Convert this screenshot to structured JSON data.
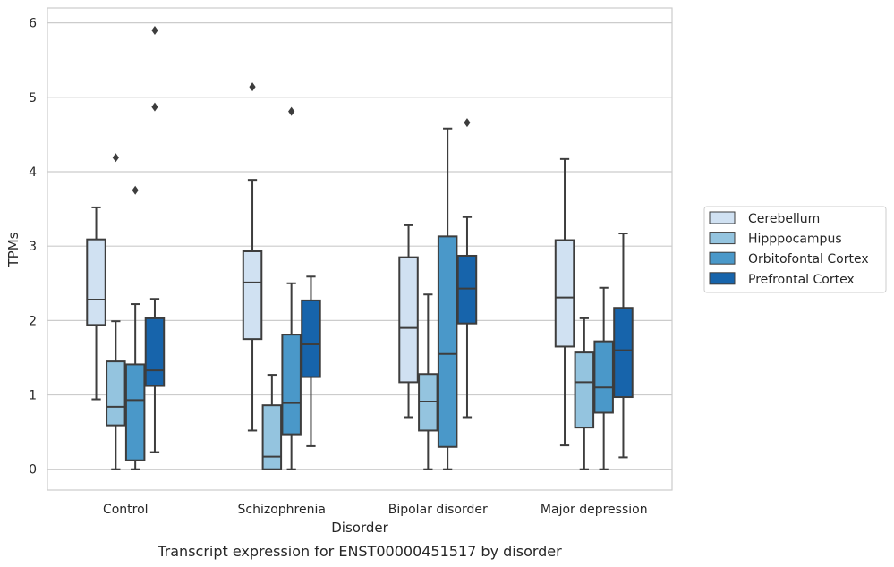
{
  "chart_data": {
    "type": "boxplot",
    "title": "",
    "caption": "Transcript expression for ENST00000451517 by disorder",
    "xlabel": "Disorder",
    "ylabel": "TPMs",
    "ylim": [
      -0.28,
      6.2
    ],
    "yticks": [
      "0",
      "1",
      "2",
      "3",
      "4",
      "5",
      "6"
    ],
    "grid": true,
    "legend_position": "right-center",
    "categories": [
      "Control",
      "Schizophrenia",
      "Bipolar disorder",
      "Major depression"
    ],
    "series": [
      {
        "name": "Cerebellum",
        "color": "#d0e1f2",
        "boxes": [
          {
            "whisker_low": 0.94,
            "q1": 1.94,
            "median": 2.28,
            "q3": 3.09,
            "whisker_high": 3.52,
            "outliers": []
          },
          {
            "whisker_low": 0.52,
            "q1": 1.75,
            "median": 2.51,
            "q3": 2.93,
            "whisker_high": 3.89,
            "outliers": [
              5.14
            ]
          },
          {
            "whisker_low": 0.7,
            "q1": 1.17,
            "median": 1.9,
            "q3": 2.85,
            "whisker_high": 3.28,
            "outliers": []
          },
          {
            "whisker_low": 0.32,
            "q1": 1.65,
            "median": 2.31,
            "q3": 3.08,
            "whisker_high": 4.17,
            "outliers": []
          }
        ]
      },
      {
        "name": "Hipppocampus",
        "color": "#94c4df",
        "boxes": [
          {
            "whisker_low": 0.0,
            "q1": 0.59,
            "median": 0.84,
            "q3": 1.45,
            "whisker_high": 1.99,
            "outliers": [
              4.19
            ]
          },
          {
            "whisker_low": 0.0,
            "q1": 0.0,
            "median": 0.17,
            "q3": 0.86,
            "whisker_high": 1.27,
            "outliers": []
          },
          {
            "whisker_low": 0.0,
            "q1": 0.52,
            "median": 0.91,
            "q3": 1.28,
            "whisker_high": 2.35,
            "outliers": []
          },
          {
            "whisker_low": 0.0,
            "q1": 0.56,
            "median": 1.17,
            "q3": 1.57,
            "whisker_high": 2.03,
            "outliers": []
          }
        ]
      },
      {
        "name": "Orbitofontal Cortex",
        "color": "#4a98c9",
        "boxes": [
          {
            "whisker_low": 0.0,
            "q1": 0.12,
            "median": 0.93,
            "q3": 1.41,
            "whisker_high": 2.22,
            "outliers": [
              3.75
            ]
          },
          {
            "whisker_low": 0.0,
            "q1": 0.47,
            "median": 0.89,
            "q3": 1.81,
            "whisker_high": 2.5,
            "outliers": [
              4.81
            ]
          },
          {
            "whisker_low": 0.0,
            "q1": 0.3,
            "median": 1.55,
            "q3": 3.13,
            "whisker_high": 4.58,
            "outliers": []
          },
          {
            "whisker_low": 0.0,
            "q1": 0.76,
            "median": 1.1,
            "q3": 1.72,
            "whisker_high": 2.44,
            "outliers": []
          }
        ]
      },
      {
        "name": "Prefrontal Cortex",
        "color": "#1764ab",
        "boxes": [
          {
            "whisker_low": 0.23,
            "q1": 1.12,
            "median": 1.33,
            "q3": 2.03,
            "whisker_high": 2.29,
            "outliers": [
              4.87,
              5.9
            ]
          },
          {
            "whisker_low": 0.31,
            "q1": 1.24,
            "median": 1.68,
            "q3": 2.27,
            "whisker_high": 2.59,
            "outliers": []
          },
          {
            "whisker_low": 0.7,
            "q1": 1.96,
            "median": 2.43,
            "q3": 2.87,
            "whisker_high": 3.39,
            "outliers": [
              4.66
            ]
          },
          {
            "whisker_low": 0.16,
            "q1": 0.97,
            "median": 1.6,
            "q3": 2.17,
            "whisker_high": 3.17,
            "outliers": []
          }
        ]
      }
    ]
  }
}
